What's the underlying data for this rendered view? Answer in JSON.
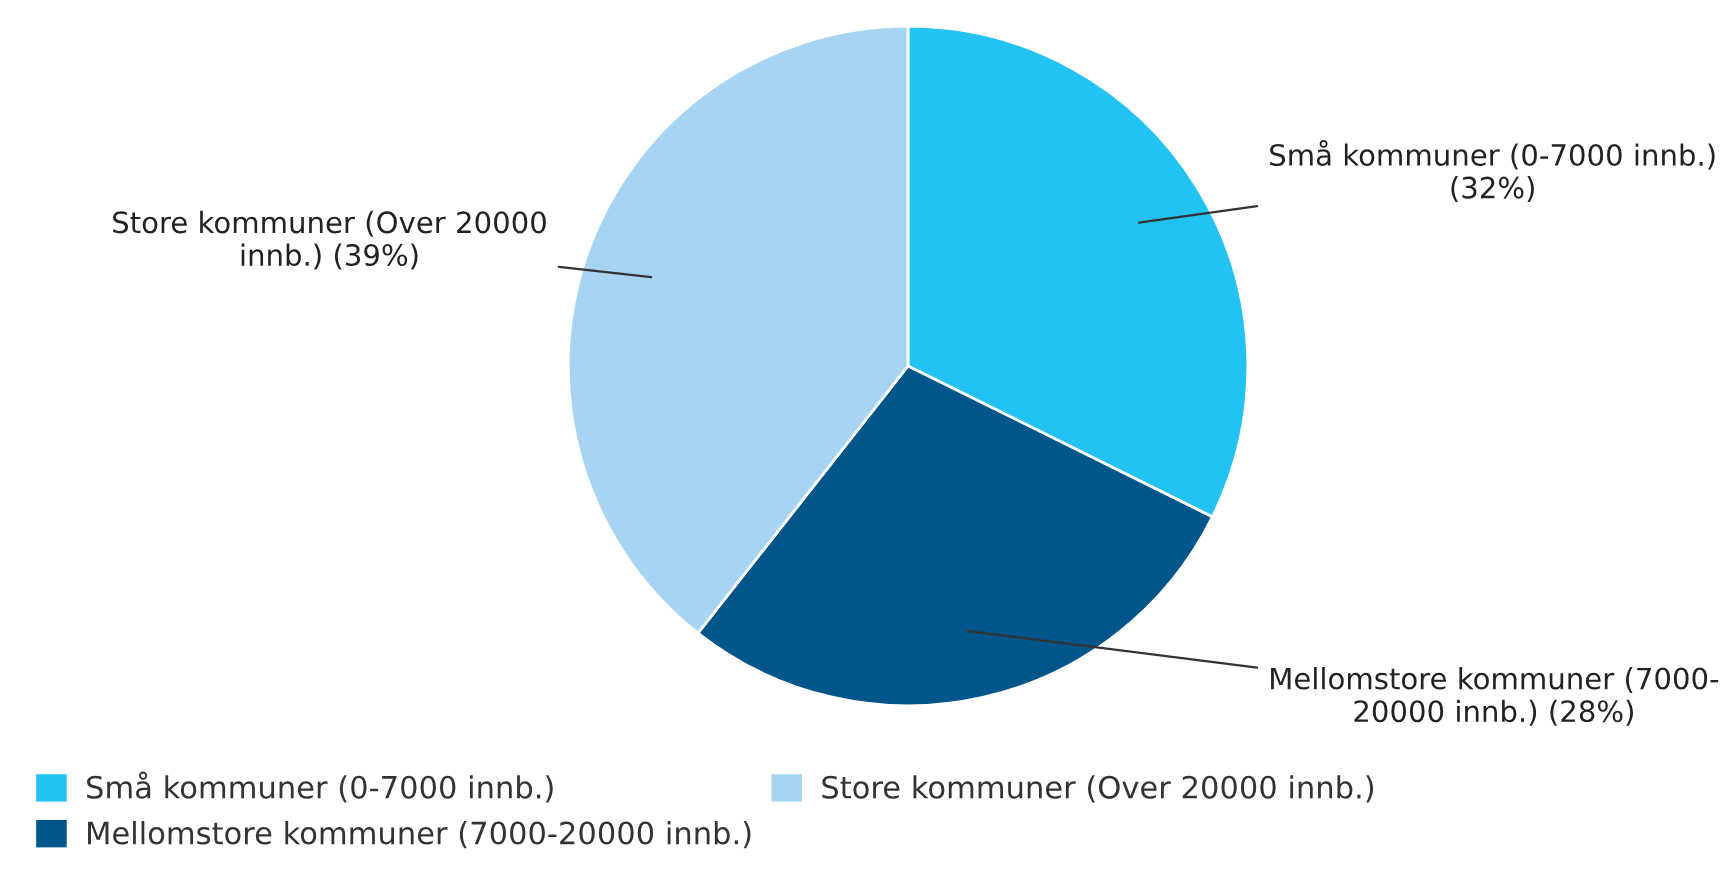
{
  "chart_data": {
    "type": "pie",
    "categories": [
      "Små kommuner (0-7000 innb.)",
      "Mellomstore kommuner (7000-20000 innb.)",
      "Store kommuner (Over 20000 innb.)"
    ],
    "values": [
      32,
      28,
      39
    ],
    "colors": [
      "#22c3f3",
      "#00568a",
      "#a8d4f4"
    ],
    "value_labels": [
      "Små kommuner (0-7000 innb.)\n(32%)",
      "Mellomstore kommuner (7000-\n20000 innb.) (28%)",
      "Store kommuner (Over 20000\ninnb.) (39%)"
    ],
    "legend": "bottom left"
  }
}
